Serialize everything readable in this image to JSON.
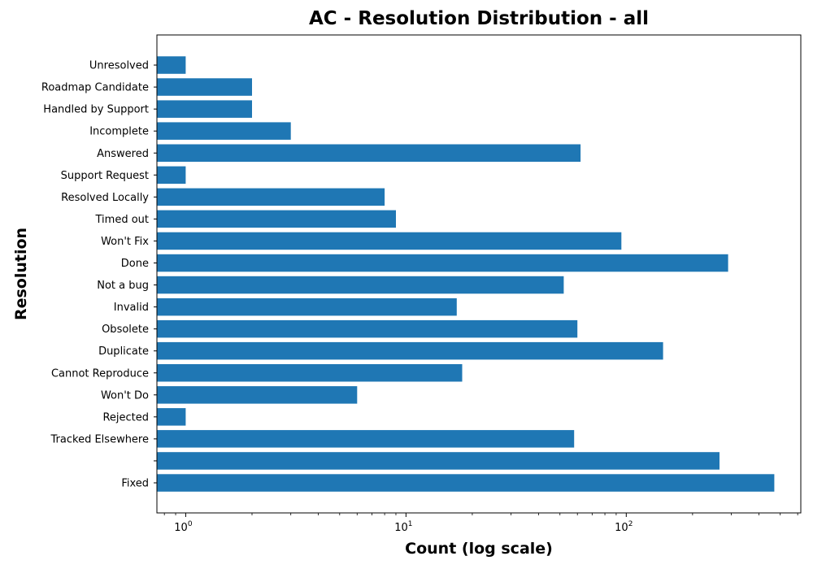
{
  "chart_data": {
    "type": "bar",
    "orientation": "horizontal",
    "title": "AC - Resolution Distribution - all",
    "xlabel": "Count (log scale)",
    "ylabel": "Resolution",
    "xscale": "log",
    "xlim": [
      0.74,
      620
    ],
    "x_ticks": [
      {
        "value": 1,
        "label": "10",
        "exp": "0"
      },
      {
        "value": 10,
        "label": "10",
        "exp": "1"
      },
      {
        "value": 100,
        "label": "10",
        "exp": "2"
      }
    ],
    "categories": [
      "Fixed",
      "",
      "Tracked Elsewhere",
      "Rejected",
      "Won't Do",
      "Cannot Reproduce",
      "Duplicate",
      "Obsolete",
      "Invalid",
      "Not a bug",
      "Done",
      "Won't Fix",
      "Timed out",
      "Resolved Locally",
      "Support Request",
      "Answered",
      "Incomplete",
      "Handled by Support",
      "Roadmap Candidate",
      "Unresolved"
    ],
    "values": [
      470,
      265,
      58,
      1,
      6,
      18,
      147,
      60,
      17,
      52,
      290,
      95,
      9,
      8,
      1,
      62,
      3,
      2,
      2,
      1
    ],
    "color": "#1f77b4",
    "grid": false,
    "legend": "none"
  }
}
